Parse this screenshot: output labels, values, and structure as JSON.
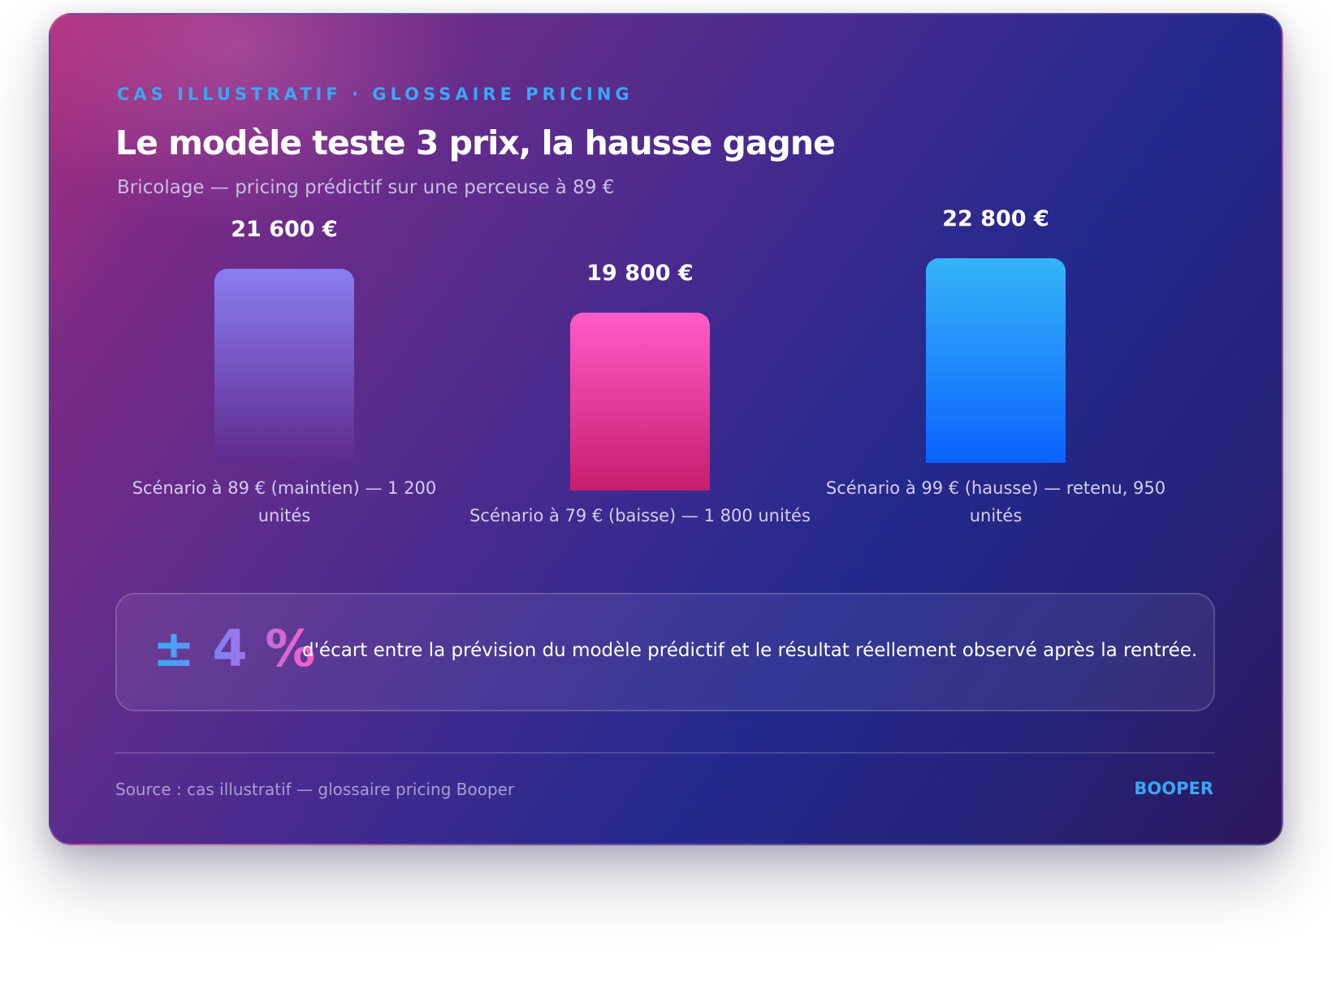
{
  "header": {
    "eyebrow": "CAS ILLUSTRATIF · GLOSSAIRE PRICING",
    "title": "Le modèle teste 3 prix, la hausse gagne",
    "subtitle": "Bricolage — pricing prédictif sur une perceuse à 89 €"
  },
  "chart_data": {
    "type": "bar",
    "categories": [
      "Scénario à 89 € (maintien) — 1 200 unités",
      "Scénario à 79 € (baisse) — 1 800 unités",
      "Scénario à 99 € (hausse) — retenu, 950 unités"
    ],
    "values": [
      21600,
      19800,
      22800
    ],
    "value_labels": [
      "21 600 €",
      "19 800 €",
      "22 800 €"
    ],
    "colors": [
      [
        "#8b7ef2",
        "#5e2a8c"
      ],
      [
        "#ff5cc8",
        "#c81c6e"
      ],
      [
        "#35b4f7",
        "#0a62ff"
      ]
    ],
    "grid": false,
    "legend": "none"
  },
  "stat": {
    "value": "± 4 %",
    "text": "d'écart entre la prévision du modèle prédictif et le résultat réellement observé après la rentrée."
  },
  "footer": {
    "source": "Source : cas illustratif — glossaire pricing Booper",
    "brand": "BOOPER"
  }
}
